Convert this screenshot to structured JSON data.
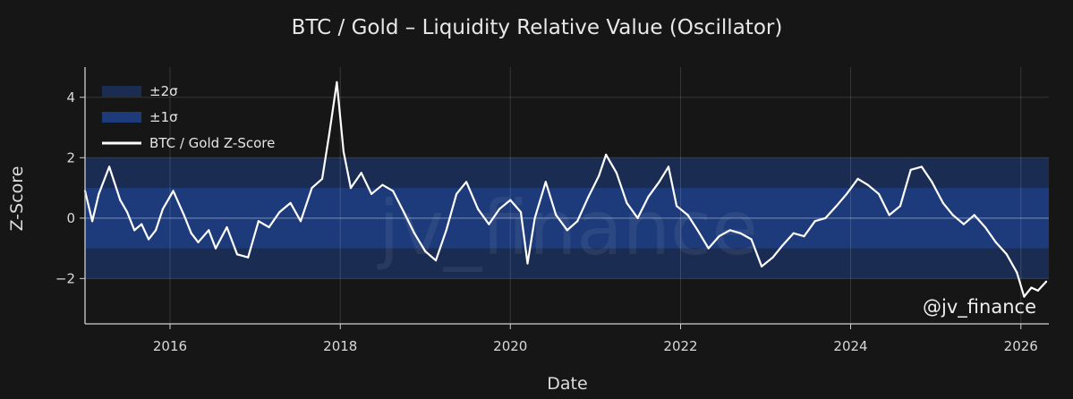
{
  "chart_data": {
    "type": "line",
    "title": "BTC / Gold – Liquidity Relative Value (Oscillator)",
    "xlabel": "Date",
    "ylabel": "Z-Score",
    "xlim": [
      "2015-01-01",
      "2026-05-01"
    ],
    "ylim": [
      -3.5,
      5.0
    ],
    "x_ticks": [
      "2016",
      "2018",
      "2020",
      "2022",
      "2024",
      "2026"
    ],
    "y_ticks": [
      4,
      2,
      0,
      -2
    ],
    "y_tick_labels": [
      "4",
      "2",
      "0",
      "−2"
    ],
    "grid": true,
    "bands": [
      {
        "name": "±2σ",
        "range": [
          -2,
          2
        ],
        "color": "#1a2c52"
      },
      {
        "name": "±1σ",
        "range": [
          -1,
          1
        ],
        "color": "#1d3b7a"
      }
    ],
    "legend_position": "top-left",
    "series": [
      {
        "name": "BTC / Gold Z-Score",
        "color": "#ffffff",
        "x": [
          "2015-01-01",
          "2015-02-01",
          "2015-03-01",
          "2015-04-15",
          "2015-06-01",
          "2015-07-01",
          "2015-08-01",
          "2015-09-01",
          "2015-10-01",
          "2015-11-01",
          "2015-12-01",
          "2016-01-15",
          "2016-03-01",
          "2016-04-01",
          "2016-05-01",
          "2016-06-15",
          "2016-07-15",
          "2016-09-01",
          "2016-10-15",
          "2016-12-01",
          "2017-01-15",
          "2017-03-01",
          "2017-04-15",
          "2017-06-01",
          "2017-07-15",
          "2017-09-01",
          "2017-10-15",
          "2017-11-15",
          "2017-12-17",
          "2018-01-15",
          "2018-02-15",
          "2018-04-01",
          "2018-05-15",
          "2018-07-01",
          "2018-08-15",
          "2018-10-01",
          "2018-11-15",
          "2019-01-01",
          "2019-02-15",
          "2019-04-01",
          "2019-05-15",
          "2019-06-26",
          "2019-08-15",
          "2019-10-01",
          "2019-11-15",
          "2020-01-01",
          "2020-02-15",
          "2020-03-15",
          "2020-04-15",
          "2020-06-01",
          "2020-07-15",
          "2020-09-01",
          "2020-10-15",
          "2020-12-01",
          "2021-01-15",
          "2021-02-15",
          "2021-04-01",
          "2021-05-15",
          "2021-07-01",
          "2021-08-15",
          "2021-10-01",
          "2021-11-10",
          "2021-12-15",
          "2022-02-01",
          "2022-03-15",
          "2022-05-01",
          "2022-06-15",
          "2022-08-01",
          "2022-09-15",
          "2022-11-01",
          "2022-12-15",
          "2023-02-01",
          "2023-03-15",
          "2023-05-01",
          "2023-06-15",
          "2023-08-01",
          "2023-09-15",
          "2023-11-01",
          "2023-12-15",
          "2024-02-01",
          "2024-03-15",
          "2024-05-01",
          "2024-06-15",
          "2024-08-01",
          "2024-09-15",
          "2024-11-01",
          "2024-12-15",
          "2025-02-01",
          "2025-03-15",
          "2025-05-01",
          "2025-06-15",
          "2025-08-01",
          "2025-09-15",
          "2025-11-01",
          "2025-12-15",
          "2026-01-15",
          "2026-02-15",
          "2026-03-15",
          "2026-04-20"
        ],
        "y": [
          0.9,
          -0.1,
          0.8,
          1.7,
          0.6,
          0.2,
          -0.4,
          -0.2,
          -0.7,
          -0.4,
          0.3,
          0.9,
          0.1,
          -0.5,
          -0.8,
          -0.4,
          -1.0,
          -0.3,
          -1.2,
          -1.3,
          -0.1,
          -0.3,
          0.2,
          0.5,
          -0.1,
          1.0,
          1.3,
          2.8,
          4.5,
          2.2,
          1.0,
          1.5,
          0.8,
          1.1,
          0.9,
          0.2,
          -0.5,
          -1.1,
          -1.4,
          -0.4,
          0.8,
          1.2,
          0.3,
          -0.2,
          0.3,
          0.6,
          0.2,
          -1.5,
          0.0,
          1.2,
          0.1,
          -0.4,
          -0.1,
          0.7,
          1.4,
          2.1,
          1.5,
          0.5,
          0.0,
          0.7,
          1.2,
          1.7,
          0.4,
          0.1,
          -0.4,
          -1.0,
          -0.6,
          -0.4,
          -0.5,
          -0.7,
          -1.6,
          -1.3,
          -0.9,
          -0.5,
          -0.6,
          -0.1,
          0.0,
          0.4,
          0.8,
          1.3,
          1.1,
          0.8,
          0.1,
          0.4,
          1.6,
          1.7,
          1.2,
          0.5,
          0.1,
          -0.2,
          0.1,
          -0.3,
          -0.8,
          -1.2,
          -1.8,
          -2.6,
          -2.3,
          -2.4,
          -2.1
        ]
      }
    ],
    "watermark": "jv_finance",
    "annotation": "@jv_finance"
  }
}
